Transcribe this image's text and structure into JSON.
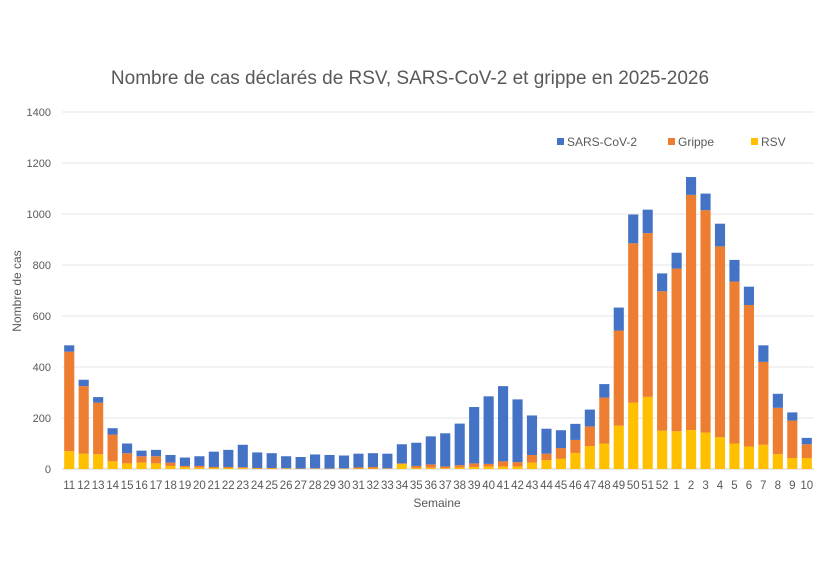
{
  "chart_data": {
    "type": "bar",
    "stacked": true,
    "title": "Nombre de cas déclarés de RSV, SARS-CoV-2 et grippe en 2025-2026",
    "xlabel": "Semaine",
    "ylabel": "Nombre de cas",
    "ylim": [
      0,
      1400
    ],
    "yticks": [
      0,
      200,
      400,
      600,
      800,
      1000,
      1200,
      1400
    ],
    "grid": true,
    "legend_position": "top-right",
    "categories": [
      "11",
      "12",
      "13",
      "14",
      "15",
      "16",
      "17",
      "18",
      "19",
      "20",
      "21",
      "22",
      "23",
      "24",
      "25",
      "26",
      "27",
      "28",
      "29",
      "30",
      "31",
      "32",
      "33",
      "34",
      "35",
      "36",
      "37",
      "38",
      "39",
      "40",
      "41",
      "42",
      "43",
      "44",
      "45",
      "46",
      "47",
      "48",
      "49",
      "50",
      "51",
      "52",
      "1",
      "2",
      "3",
      "4",
      "5",
      "6",
      "7",
      "8",
      "9",
      "10"
    ],
    "series": [
      {
        "name": "RSV",
        "color": "#FFC000",
        "values": [
          70,
          60,
          58,
          30,
          22,
          25,
          22,
          12,
          7,
          5,
          4,
          4,
          3,
          2,
          2,
          2,
          1,
          1,
          1,
          1,
          2,
          2,
          1,
          20,
          4,
          5,
          3,
          6,
          8,
          10,
          10,
          10,
          25,
          35,
          40,
          63,
          90,
          100,
          170,
          260,
          283,
          150,
          148,
          153,
          143,
          125,
          100,
          88,
          95,
          58,
          43,
          43
        ]
      },
      {
        "name": "Grippe",
        "color": "#ED7D31",
        "values": [
          390,
          265,
          202,
          105,
          40,
          25,
          28,
          13,
          5,
          7,
          4,
          4,
          4,
          2,
          2,
          1,
          1,
          2,
          1,
          2,
          4,
          6,
          2,
          2,
          8,
          13,
          7,
          9,
          14,
          10,
          20,
          17,
          30,
          25,
          42,
          51,
          77,
          180,
          373,
          625,
          642,
          547,
          638,
          922,
          872,
          748,
          635,
          555,
          325,
          182,
          147,
          54
        ]
      },
      {
        "name": "SARS-CoV-2",
        "color": "#4472C4",
        "values": [
          25,
          25,
          22,
          25,
          38,
          22,
          25,
          30,
          33,
          38,
          60,
          67,
          88,
          61,
          58,
          47,
          45,
          54,
          53,
          50,
          54,
          54,
          57,
          75,
          91,
          110,
          130,
          163,
          221,
          265,
          295,
          246,
          155,
          98,
          70,
          63,
          66,
          53,
          90,
          113,
          92,
          70,
          62,
          70,
          65,
          89,
          85,
          72,
          65,
          55,
          32,
          25
        ]
      }
    ],
    "legend_order": [
      "SARS-CoV-2",
      "Grippe",
      "RSV"
    ]
  }
}
